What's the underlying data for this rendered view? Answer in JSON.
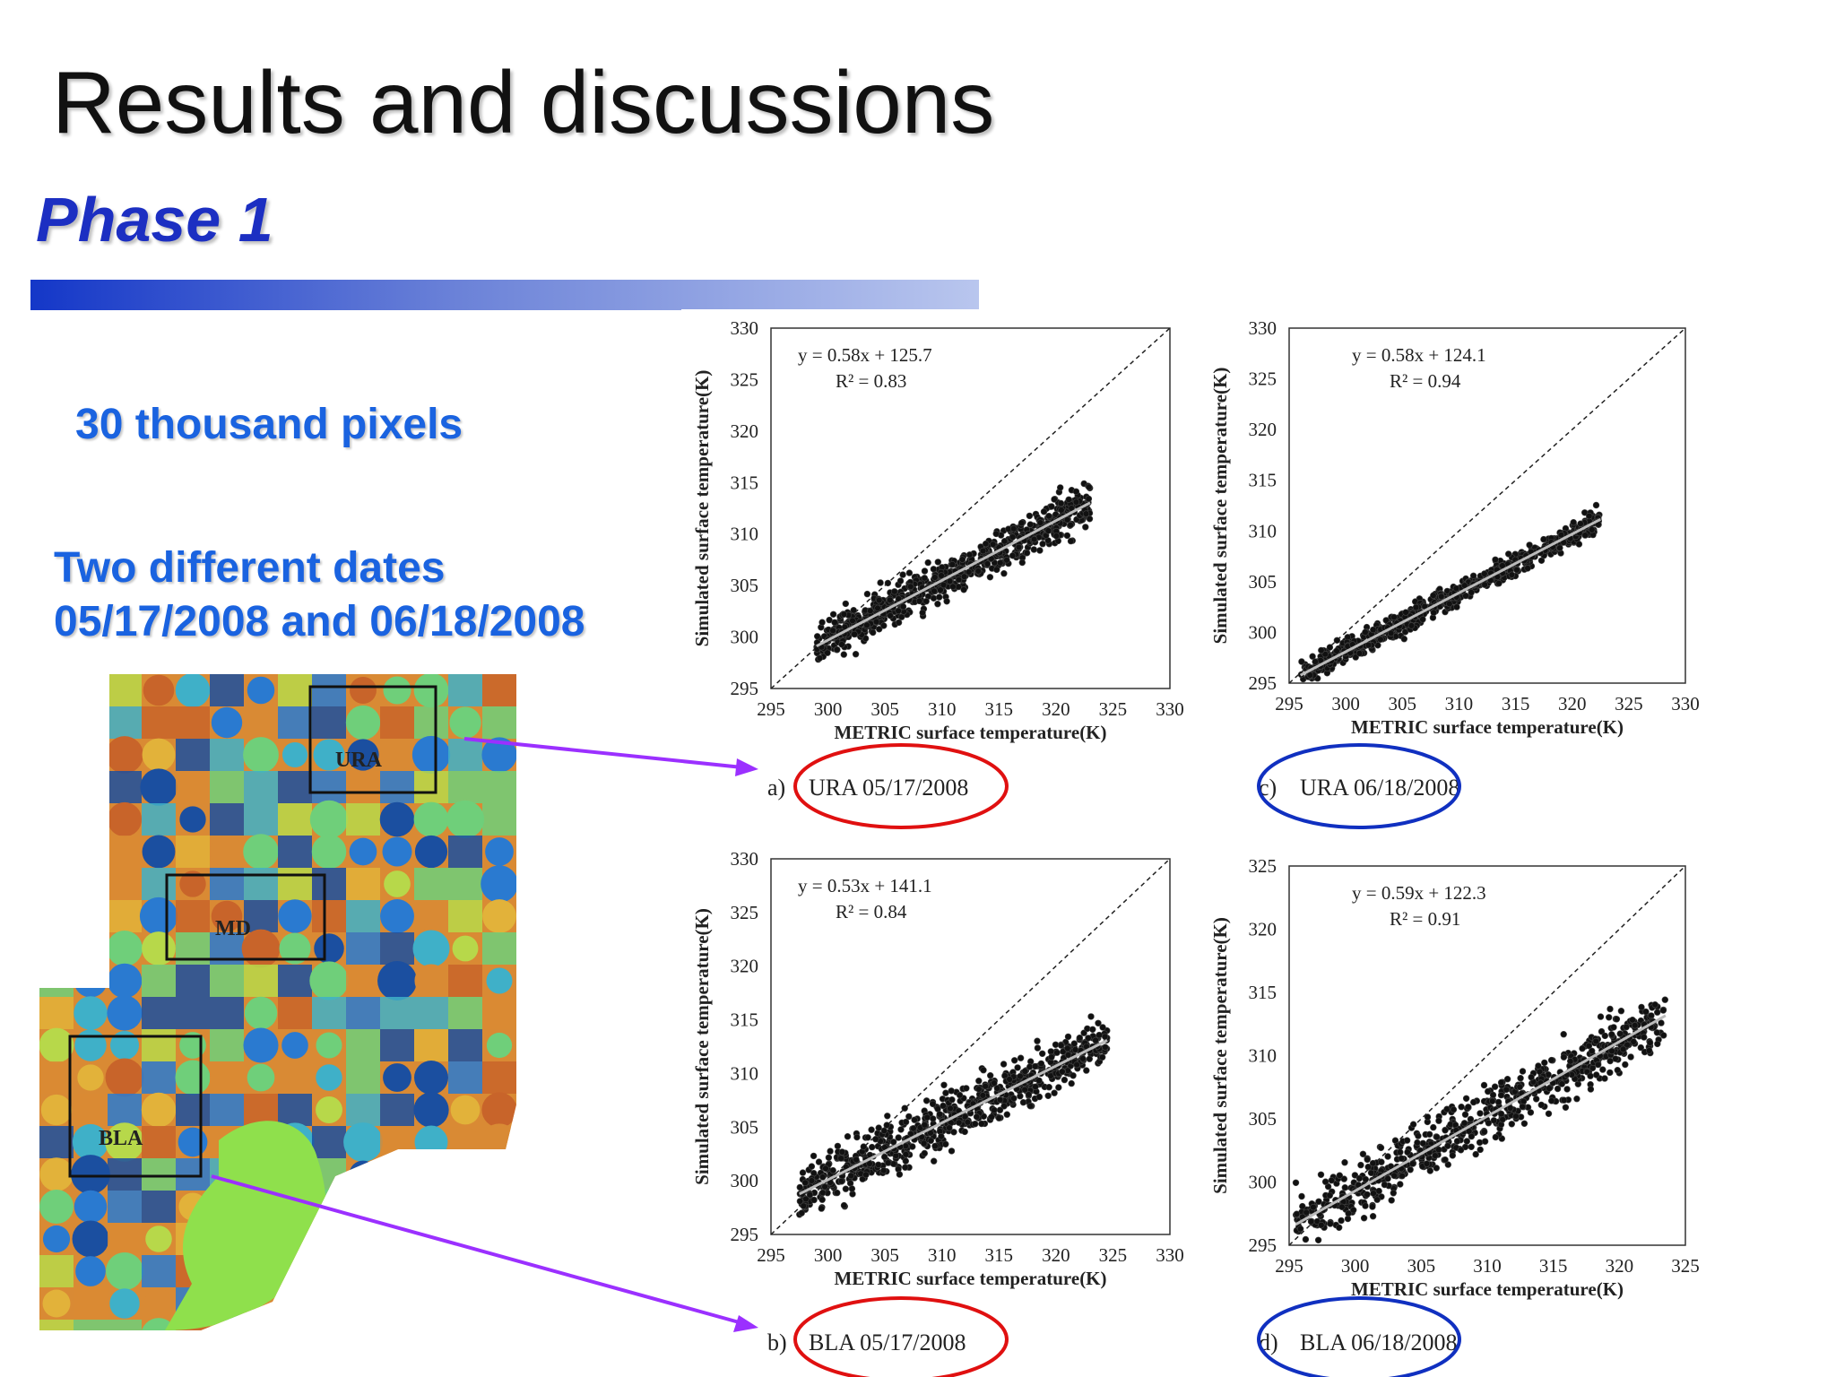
{
  "slide": {
    "title": "Results and discussions",
    "subtitle": "Phase 1",
    "pixels_text": "30 thousand pixels",
    "dates_line1": "Two different dates",
    "dates_line2": "05/17/2008 and 06/18/2008"
  },
  "map": {
    "regions": [
      "URA",
      "MD",
      "BLA"
    ]
  },
  "chart_data": [
    {
      "type": "scatter",
      "id": "a",
      "caption_prefix": "a)",
      "caption": "URA 05/17/2008",
      "equation": "y = 0.58x  + 125.7",
      "r2": "R² = 0.83",
      "xlabel": "METRIC  surface temperature(K)",
      "ylabel": "Simulated  surface temperature(K)",
      "xlim": [
        295,
        330
      ],
      "ylim": [
        295,
        330
      ],
      "xticks": [
        "295",
        "300",
        "305",
        "310",
        "315",
        "320",
        "325",
        "330"
      ],
      "yticks": [
        "295",
        "300",
        "305",
        "310",
        "315",
        "320",
        "325",
        "330"
      ],
      "x_range": [
        299,
        323
      ],
      "fit": {
        "slope": 0.58,
        "intercept": 125.7
      },
      "spread": 2.2,
      "circle": "red"
    },
    {
      "type": "scatter",
      "id": "c",
      "caption_prefix": "c)",
      "caption": "URA 06/18/2008",
      "equation": "y = 0.58x  + 124.1",
      "r2": "R² = 0.94",
      "xlabel": "METRIC  surface temperature(K)",
      "ylabel": "Simulated  surface temperature(K)",
      "xlim": [
        295,
        330
      ],
      "ylim": [
        295,
        330
      ],
      "xticks": [
        "295",
        "300",
        "305",
        "310",
        "315",
        "320",
        "325",
        "330"
      ],
      "yticks": [
        "295",
        "300",
        "305",
        "310",
        "315",
        "320",
        "325",
        "330"
      ],
      "x_range": [
        296,
        322.5
      ],
      "fit": {
        "slope": 0.58,
        "intercept": 124.1
      },
      "spread": 1.3,
      "circle": "blue"
    },
    {
      "type": "scatter",
      "id": "b",
      "caption_prefix": "b)",
      "caption": "BLA 05/17/2008",
      "equation": "y = 0.53x  + 141.1",
      "r2": "R² = 0.84",
      "xlabel": "METRIC  surface temperature(K)",
      "ylabel": "Simulated  surface temperature(K)",
      "xlim": [
        295,
        330
      ],
      "ylim": [
        295,
        330
      ],
      "xticks": [
        "295",
        "300",
        "305",
        "310",
        "315",
        "320",
        "325",
        "330"
      ],
      "yticks": [
        "295",
        "300",
        "305",
        "310",
        "315",
        "320",
        "325",
        "330"
      ],
      "x_range": [
        297.5,
        324.5
      ],
      "fit": {
        "slope": 0.53,
        "intercept": 141.1
      },
      "spread": 2.6,
      "circle": "red"
    },
    {
      "type": "scatter",
      "id": "d",
      "caption_prefix": "d)",
      "caption": "BLA 06/18/2008",
      "equation": "y = 0.59x  + 122.3",
      "r2": "R² = 0.91",
      "xlabel": "METRIC  surface temperature(K)",
      "ylabel": "Simulated  surface temperature(K)",
      "xlim": [
        295,
        325
      ],
      "ylim": [
        295,
        325
      ],
      "xticks": [
        "295",
        "300",
        "305",
        "310",
        "315",
        "320",
        "325"
      ],
      "yticks": [
        "295",
        "300",
        "305",
        "310",
        "315",
        "320",
        "325"
      ],
      "x_range": [
        295.5,
        323.5
      ],
      "fit": {
        "slope": 0.59,
        "intercept": 122.3
      },
      "spread": 2.3,
      "circle": "blue"
    }
  ],
  "colors": {
    "title": "#111111",
    "subtitle": "#1c2fc2",
    "body_text": "#1a63e0",
    "arrow": "#9b30ff",
    "circle_red": "#e01010",
    "circle_blue": "#1030c0"
  }
}
